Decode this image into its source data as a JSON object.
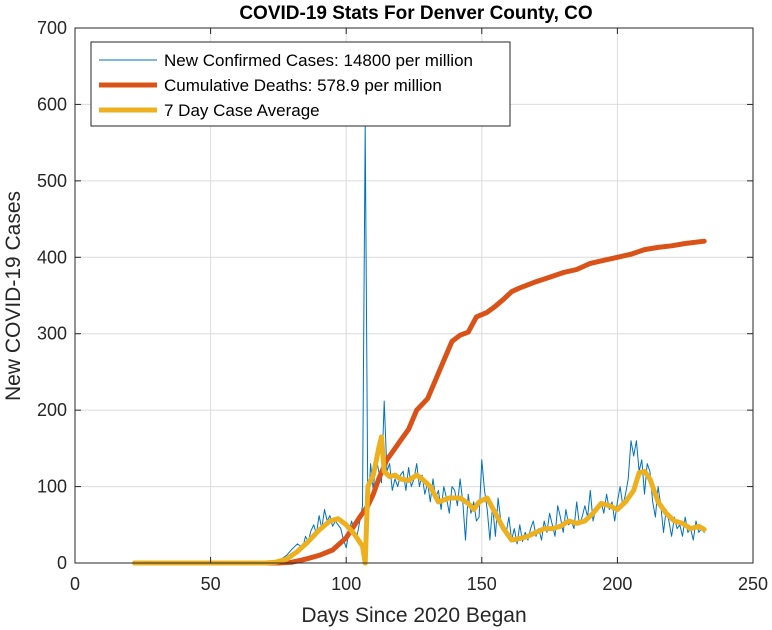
{
  "chart_data": {
    "type": "line",
    "title": "COVID-19 Stats For Denver County, CO",
    "xlabel": "Days Since 2020 Began",
    "ylabel": "New COVID-19 Cases",
    "xlim": [
      0,
      250
    ],
    "ylim": [
      0,
      700
    ],
    "xticks": [
      0,
      50,
      100,
      150,
      200,
      250
    ],
    "yticks": [
      0,
      100,
      200,
      300,
      400,
      500,
      600,
      700
    ],
    "grid": true,
    "legend_position": "top-left",
    "series": [
      {
        "name": "New Confirmed Cases: 14800 per million",
        "color": "#0072BD",
        "style": "thin",
        "points": [
          [
            22,
            0
          ],
          [
            70,
            0
          ],
          [
            74,
            2
          ],
          [
            76,
            5
          ],
          [
            78,
            10
          ],
          [
            80,
            18
          ],
          [
            82,
            25
          ],
          [
            84,
            20
          ],
          [
            85,
            35
          ],
          [
            86,
            28
          ],
          [
            87,
            42
          ],
          [
            88,
            50
          ],
          [
            89,
            38
          ],
          [
            90,
            62
          ],
          [
            91,
            45
          ],
          [
            92,
            70
          ],
          [
            93,
            55
          ],
          [
            94,
            62
          ],
          [
            95,
            48
          ],
          [
            96,
            55
          ],
          [
            97,
            50
          ],
          [
            98,
            45
          ],
          [
            99,
            30
          ],
          [
            100,
            20
          ],
          [
            101,
            40
          ],
          [
            102,
            55
          ],
          [
            103,
            40
          ],
          [
            104,
            35
          ],
          [
            105,
            55
          ],
          [
            106,
            75
          ],
          [
            107,
            572
          ],
          [
            108,
            60
          ],
          [
            109,
            130
          ],
          [
            110,
            95
          ],
          [
            111,
            140
          ],
          [
            112,
            120
          ],
          [
            113,
            105
          ],
          [
            114,
            212
          ],
          [
            115,
            120
          ],
          [
            116,
            130
          ],
          [
            117,
            95
          ],
          [
            118,
            110
          ],
          [
            119,
            100
          ],
          [
            120,
            115
          ],
          [
            121,
            120
          ],
          [
            122,
            95
          ],
          [
            123,
            125
          ],
          [
            124,
            100
          ],
          [
            125,
            110
          ],
          [
            126,
            130
          ],
          [
            127,
            100
          ],
          [
            128,
            115
          ],
          [
            129,
            90
          ],
          [
            130,
            105
          ],
          [
            131,
            80
          ],
          [
            132,
            110
          ],
          [
            133,
            85
          ],
          [
            134,
            95
          ],
          [
            135,
            70
          ],
          [
            136,
            100
          ],
          [
            137,
            85
          ],
          [
            138,
            65
          ],
          [
            139,
            100
          ],
          [
            140,
            95
          ],
          [
            141,
            75
          ],
          [
            142,
            110
          ],
          [
            143,
            80
          ],
          [
            144,
            30
          ],
          [
            145,
            90
          ],
          [
            146,
            65
          ],
          [
            147,
            80
          ],
          [
            148,
            55
          ],
          [
            149,
            60
          ],
          [
            150,
            135
          ],
          [
            151,
            95
          ],
          [
            152,
            70
          ],
          [
            153,
            30
          ],
          [
            154,
            75
          ],
          [
            155,
            35
          ],
          [
            156,
            85
          ],
          [
            157,
            55
          ],
          [
            158,
            50
          ],
          [
            159,
            40
          ],
          [
            160,
            60
          ],
          [
            161,
            30
          ],
          [
            162,
            45
          ],
          [
            163,
            25
          ],
          [
            164,
            50
          ],
          [
            165,
            28
          ],
          [
            166,
            40
          ],
          [
            167,
            30
          ],
          [
            168,
            45
          ],
          [
            169,
            55
          ],
          [
            170,
            35
          ],
          [
            171,
            45
          ],
          [
            172,
            30
          ],
          [
            173,
            55
          ],
          [
            174,
            40
          ],
          [
            175,
            65
          ],
          [
            176,
            50
          ],
          [
            177,
            35
          ],
          [
            178,
            75
          ],
          [
            179,
            60
          ],
          [
            180,
            40
          ],
          [
            181,
            70
          ],
          [
            182,
            50
          ],
          [
            183,
            55
          ],
          [
            184,
            45
          ],
          [
            185,
            80
          ],
          [
            186,
            50
          ],
          [
            187,
            60
          ],
          [
            188,
            75
          ],
          [
            189,
            60
          ],
          [
            190,
            95
          ],
          [
            191,
            55
          ],
          [
            192,
            70
          ],
          [
            193,
            75
          ],
          [
            194,
            80
          ],
          [
            195,
            65
          ],
          [
            196,
            90
          ],
          [
            197,
            70
          ],
          [
            198,
            80
          ],
          [
            199,
            55
          ],
          [
            200,
            80
          ],
          [
            201,
            100
          ],
          [
            202,
            75
          ],
          [
            203,
            90
          ],
          [
            204,
            110
          ],
          [
            205,
            160
          ],
          [
            206,
            140
          ],
          [
            207,
            160
          ],
          [
            208,
            120
          ],
          [
            209,
            135
          ],
          [
            210,
            90
          ],
          [
            211,
            130
          ],
          [
            212,
            120
          ],
          [
            213,
            80
          ],
          [
            214,
            60
          ],
          [
            215,
            100
          ],
          [
            216,
            75
          ],
          [
            217,
            40
          ],
          [
            218,
            70
          ],
          [
            219,
            55
          ],
          [
            220,
            35
          ],
          [
            221,
            60
          ],
          [
            222,
            45
          ],
          [
            223,
            50
          ],
          [
            224,
            35
          ],
          [
            225,
            60
          ],
          [
            226,
            40
          ],
          [
            227,
            45
          ],
          [
            228,
            30
          ],
          [
            229,
            55
          ],
          [
            230,
            40
          ],
          [
            231,
            45
          ],
          [
            232,
            40
          ]
        ]
      },
      {
        "name": "Cumulative Deaths: 578.9 per million",
        "color": "#D95319",
        "style": "thick",
        "points": [
          [
            22,
            0
          ],
          [
            75,
            0
          ],
          [
            80,
            1
          ],
          [
            85,
            5
          ],
          [
            90,
            10
          ],
          [
            95,
            17
          ],
          [
            100,
            33
          ],
          [
            105,
            60
          ],
          [
            108,
            75
          ],
          [
            110,
            90
          ],
          [
            112,
            110
          ],
          [
            115,
            135
          ],
          [
            118,
            150
          ],
          [
            120,
            160
          ],
          [
            123,
            175
          ],
          [
            126,
            200
          ],
          [
            130,
            215
          ],
          [
            133,
            240
          ],
          [
            136,
            265
          ],
          [
            139,
            290
          ],
          [
            142,
            298
          ],
          [
            145,
            302
          ],
          [
            148,
            322
          ],
          [
            152,
            328
          ],
          [
            155,
            336
          ],
          [
            158,
            345
          ],
          [
            161,
            355
          ],
          [
            164,
            360
          ],
          [
            167,
            364
          ],
          [
            170,
            368
          ],
          [
            175,
            374
          ],
          [
            180,
            380
          ],
          [
            185,
            384
          ],
          [
            190,
            392
          ],
          [
            195,
            396
          ],
          [
            200,
            400
          ],
          [
            205,
            404
          ],
          [
            210,
            410
          ],
          [
            215,
            413
          ],
          [
            220,
            415
          ],
          [
            225,
            418
          ],
          [
            232,
            421
          ]
        ]
      },
      {
        "name": "7 Day Case Average",
        "color": "#EDB120",
        "style": "thick",
        "points": [
          [
            22,
            0
          ],
          [
            70,
            0
          ],
          [
            74,
            1
          ],
          [
            78,
            5
          ],
          [
            82,
            15
          ],
          [
            86,
            28
          ],
          [
            90,
            43
          ],
          [
            94,
            55
          ],
          [
            97,
            58
          ],
          [
            100,
            50
          ],
          [
            103,
            38
          ],
          [
            106,
            22
          ],
          [
            107,
            0
          ],
          [
            108,
            100
          ],
          [
            110,
            115
          ],
          [
            112,
            150
          ],
          [
            113,
            165
          ],
          [
            114,
            120
          ],
          [
            116,
            113
          ],
          [
            118,
            115
          ],
          [
            120,
            110
          ],
          [
            123,
            108
          ],
          [
            126,
            115
          ],
          [
            128,
            110
          ],
          [
            131,
            100
          ],
          [
            134,
            80
          ],
          [
            138,
            85
          ],
          [
            142,
            85
          ],
          [
            145,
            78
          ],
          [
            147,
            70
          ],
          [
            149,
            80
          ],
          [
            152,
            85
          ],
          [
            155,
            65
          ],
          [
            158,
            45
          ],
          [
            161,
            30
          ],
          [
            164,
            32
          ],
          [
            167,
            35
          ],
          [
            170,
            40
          ],
          [
            173,
            45
          ],
          [
            176,
            45
          ],
          [
            179,
            48
          ],
          [
            182,
            55
          ],
          [
            185,
            52
          ],
          [
            188,
            55
          ],
          [
            191,
            65
          ],
          [
            194,
            78
          ],
          [
            197,
            75
          ],
          [
            200,
            70
          ],
          [
            203,
            80
          ],
          [
            206,
            95
          ],
          [
            208,
            118
          ],
          [
            210,
            120
          ],
          [
            212,
            110
          ],
          [
            215,
            80
          ],
          [
            218,
            65
          ],
          [
            221,
            55
          ],
          [
            224,
            52
          ],
          [
            227,
            45
          ],
          [
            230,
            48
          ],
          [
            232,
            44
          ]
        ]
      }
    ]
  }
}
